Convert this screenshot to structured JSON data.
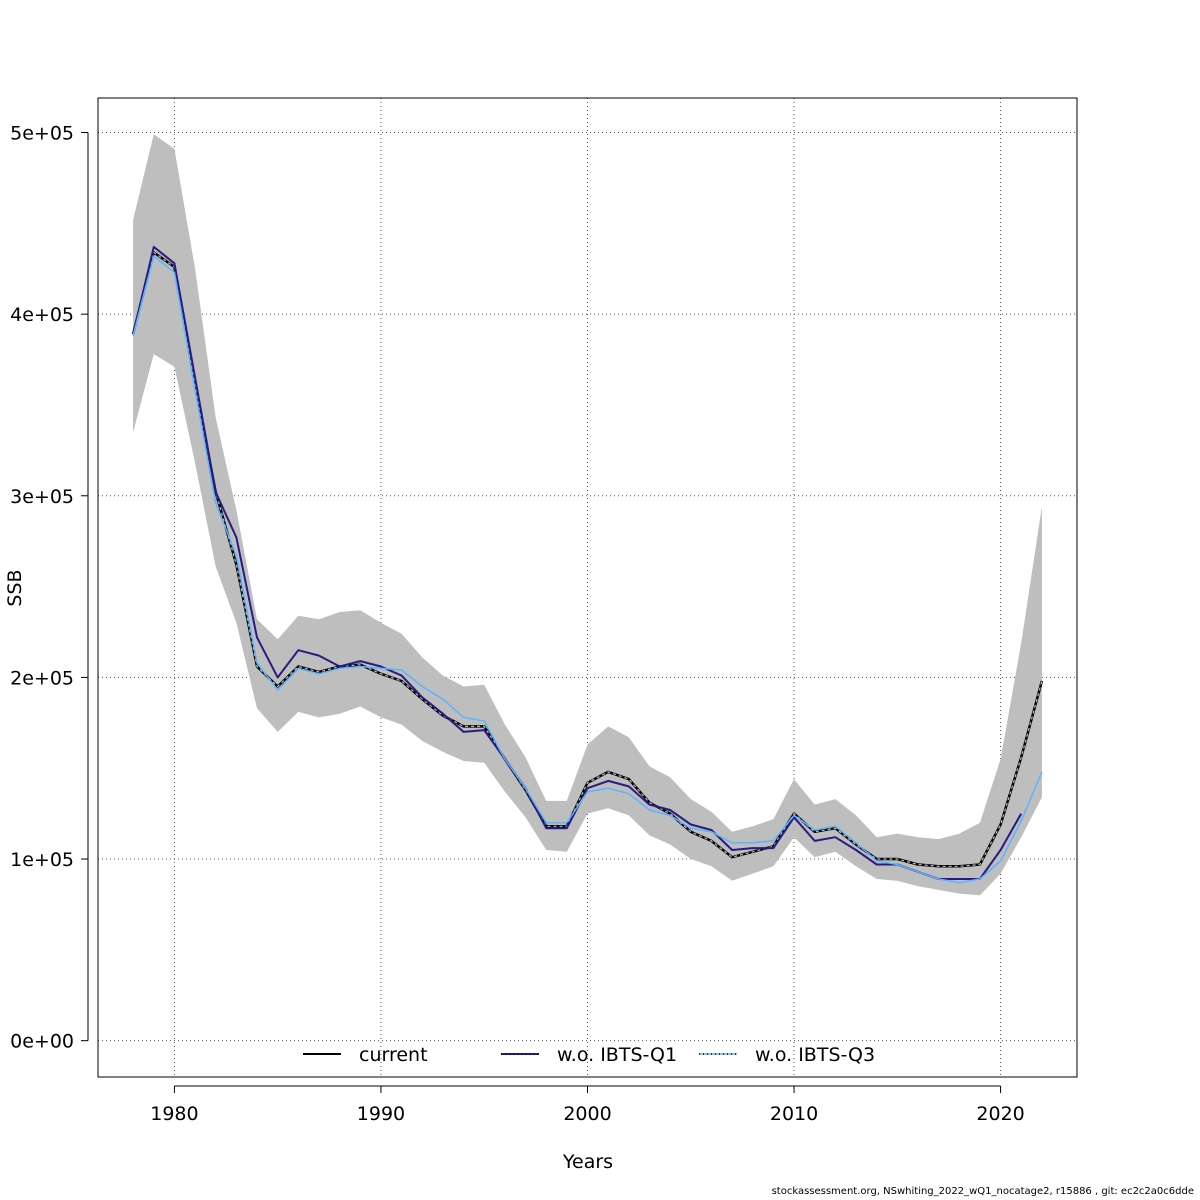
{
  "chart_data": {
    "type": "line",
    "xlabel": "Years",
    "ylabel": "SSB",
    "xlim": [
      1976.3,
      2023.7
    ],
    "ylim": [
      -20000,
      519000
    ],
    "x_ticks": [
      1980,
      1990,
      2000,
      2010,
      2020
    ],
    "x_tick_labels": [
      "1980",
      "1990",
      "2000",
      "2010",
      "2020"
    ],
    "y_ticks": [
      0,
      100000,
      200000,
      300000,
      400000,
      500000
    ],
    "y_tick_labels": [
      "0e+00",
      "1e+05",
      "2e+05",
      "3e+05",
      "4e+05",
      "5e+05"
    ],
    "grid": true,
    "legend_position": "bottom",
    "confidence_band": {
      "color": "#bebebe",
      "x": [
        1978,
        1979,
        1980,
        1981,
        1982,
        1983,
        1984,
        1985,
        1986,
        1987,
        1988,
        1989,
        1990,
        1991,
        1992,
        1993,
        1994,
        1995,
        1996,
        1997,
        1998,
        1999,
        2000,
        2001,
        2002,
        2003,
        2004,
        2005,
        2006,
        2007,
        2008,
        2009,
        2010,
        2011,
        2012,
        2013,
        2014,
        2015,
        2016,
        2017,
        2018,
        2019,
        2020,
        2021,
        2022
      ],
      "upper": [
        452000,
        499000,
        491000,
        425000,
        343000,
        292000,
        232000,
        221000,
        234000,
        232000,
        236000,
        237000,
        230000,
        224000,
        211000,
        201000,
        195000,
        196000,
        174000,
        156000,
        132000,
        132000,
        163000,
        173000,
        167000,
        151000,
        145000,
        133000,
        126000,
        115000,
        118000,
        122000,
        144000,
        130000,
        133000,
        124000,
        112000,
        114000,
        112000,
        111000,
        114000,
        120000,
        155000,
        219000,
        294000
      ],
      "lower": [
        335000,
        378000,
        371000,
        318000,
        261000,
        230000,
        183000,
        170000,
        181000,
        178000,
        180000,
        184000,
        178000,
        174000,
        165000,
        159000,
        154000,
        153000,
        137000,
        123000,
        105000,
        104000,
        125000,
        128000,
        124000,
        113000,
        108000,
        100000,
        96000,
        88000,
        92000,
        96000,
        112000,
        101000,
        104000,
        96000,
        89000,
        88000,
        85000,
        83000,
        81000,
        80000,
        92000,
        112000,
        134000
      ]
    },
    "series": [
      {
        "name": "current",
        "color": "#000000",
        "dash": "solid",
        "x": [
          1978,
          1979,
          1980,
          1981,
          1982,
          1983,
          1984,
          1985,
          1986,
          1987,
          1988,
          1989,
          1990,
          1991,
          1992,
          1993,
          1994,
          1995,
          1996,
          1997,
          1998,
          1999,
          2000,
          2001,
          2002,
          2003,
          2004,
          2005,
          2006,
          2007,
          2008,
          2009,
          2010,
          2011,
          2012,
          2013,
          2014,
          2015,
          2016,
          2017,
          2018,
          2019,
          2020,
          2021,
          2022
        ],
        "values": [
          389000,
          434000,
          426000,
          361000,
          302000,
          262000,
          206000,
          195000,
          206000,
          203000,
          206000,
          207000,
          202000,
          198000,
          188000,
          179000,
          173000,
          173000,
          155000,
          138000,
          118000,
          118000,
          142000,
          148000,
          144000,
          131000,
          125000,
          115000,
          110000,
          101000,
          104000,
          107000,
          125000,
          115000,
          117000,
          108000,
          100000,
          100000,
          97000,
          96000,
          96000,
          97000,
          119000,
          156000,
          198000
        ]
      },
      {
        "name": "w.o. IBTS-Q1",
        "color": "#2b1a82",
        "dash": "solid",
        "x": [
          1978,
          1979,
          1980,
          1981,
          1982,
          1983,
          1984,
          1985,
          1986,
          1987,
          1988,
          1989,
          1990,
          1991,
          1992,
          1993,
          1994,
          1995,
          1996,
          1997,
          1998,
          1999,
          2000,
          2001,
          2002,
          2003,
          2004,
          2005,
          2006,
          2007,
          2008,
          2009,
          2010,
          2011,
          2012,
          2013,
          2014,
          2015,
          2016,
          2017,
          2018,
          2019,
          2020,
          2021
        ],
        "values": [
          389000,
          437000,
          428000,
          365000,
          302000,
          277000,
          222000,
          200000,
          215000,
          212000,
          206000,
          209000,
          206000,
          201000,
          189000,
          180000,
          170000,
          171000,
          155000,
          139000,
          117000,
          117000,
          139000,
          143000,
          140000,
          130000,
          127000,
          119000,
          116000,
          105000,
          106000,
          106000,
          123000,
          110000,
          112000,
          105000,
          97000,
          97000,
          93000,
          89000,
          89000,
          89000,
          105000,
          125000
        ]
      },
      {
        "name": "w.o. IBTS-Q3",
        "color": "#5ab4ff",
        "dash": "dotted",
        "x": [
          1978,
          1979,
          1980,
          1981,
          1982,
          1983,
          1984,
          1985,
          1986,
          1987,
          1988,
          1989,
          1990,
          1991,
          1992,
          1993,
          1994,
          1995,
          1996,
          1997,
          1998,
          1999,
          2000,
          2001,
          2002,
          2003,
          2004,
          2005,
          2006,
          2007,
          2008,
          2009,
          2010,
          2011,
          2012,
          2013,
          2014,
          2015,
          2016,
          2017,
          2018,
          2019,
          2020,
          2021,
          2022
        ],
        "values": [
          388000,
          432000,
          423000,
          358000,
          296000,
          267000,
          208000,
          193000,
          205000,
          202000,
          205000,
          206000,
          205000,
          204000,
          195000,
          188000,
          178000,
          176000,
          155000,
          139000,
          120000,
          120000,
          137000,
          139000,
          136000,
          127000,
          124000,
          117000,
          115000,
          109000,
          109000,
          110000,
          124000,
          116000,
          118000,
          109000,
          99000,
          97000,
          93000,
          89000,
          87000,
          89000,
          99000,
          121000,
          148000
        ]
      }
    ]
  },
  "footer": {
    "note": "stockassessment.org, NSwhiting_2022_wQ1_nocatage2, r15886 , git: ec2c2a0c6dde"
  }
}
